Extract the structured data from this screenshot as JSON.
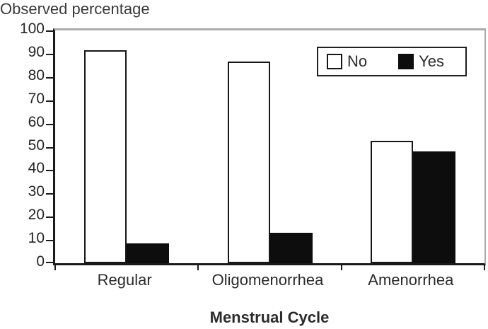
{
  "figure": {
    "title": "Observed percentage",
    "x_axis_title": "Menstrual Cycle"
  },
  "colors": {
    "axis": "#1a1a1a",
    "plot_border_gray": "#ababab",
    "text": "#2b2b2b",
    "bar_no_fill": "#ffffff",
    "bar_yes_fill": "#0d0d0d",
    "bar_border": "#161616"
  },
  "chart_data": {
    "type": "bar",
    "title": "Observed percentage",
    "xlabel": "Menstrual Cycle",
    "ylabel": "Observed percentage",
    "categories": [
      "Regular",
      "Oligomenorrhea",
      "Amenorrhea"
    ],
    "series": [
      {
        "name": "No",
        "fill": "#ffffff",
        "values": [
          91.5,
          86.5,
          52.5
        ]
      },
      {
        "name": "Yes",
        "fill": "#0d0d0d",
        "values": [
          8.5,
          13,
          48
        ]
      }
    ],
    "ylim": [
      0,
      100
    ],
    "ytick_step": 10,
    "yticks": [
      0,
      10,
      20,
      30,
      40,
      50,
      60,
      70,
      80,
      90,
      100
    ],
    "grid": false,
    "legend_position": "top-right-inside",
    "legend_entries": [
      "No",
      "Yes"
    ]
  }
}
